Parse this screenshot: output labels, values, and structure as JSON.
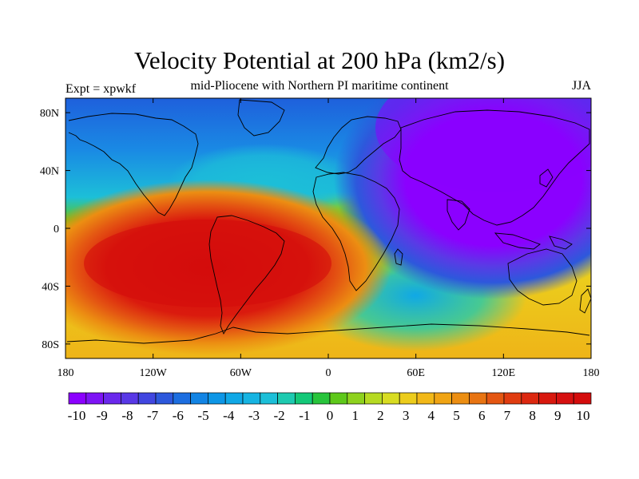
{
  "title": "Velocity Potential at 200 hPa (km2/s)",
  "left_label": "Expt = xpwkf",
  "center_label": "mid-Pliocene with Northern PI maritime continent",
  "right_label": "JJA",
  "x_ticks": [
    "180",
    "120W",
    "60W",
    "0",
    "60E",
    "120E",
    "180"
  ],
  "y_ticks": [
    "80N",
    "40N",
    "0",
    "40S",
    "80S"
  ],
  "colorbar": {
    "labels": [
      "-10",
      "-9",
      "-8",
      "-7",
      "-6",
      "-5",
      "-4",
      "-3",
      "-2",
      "-1",
      "0",
      "1",
      "2",
      "3",
      "4",
      "5",
      "6",
      "7",
      "8",
      "9",
      "10"
    ],
    "colors": [
      "#8b00ff",
      "#7d14f5",
      "#6a28ec",
      "#5838e6",
      "#4146e0",
      "#2d58dc",
      "#1c6ee0",
      "#1284e4",
      "#0d96e6",
      "#10a8e6",
      "#16b4e2",
      "#1cbfd8",
      "#1ecab0",
      "#14c878",
      "#28c43c",
      "#5ec81a",
      "#8ed21e",
      "#b6da22",
      "#d8dc22",
      "#eccc1c",
      "#f2b818",
      "#f0a414",
      "#ec8e12",
      "#e87412",
      "#e45612",
      "#e03c10",
      "#dc2810",
      "#d8180e",
      "#d61010",
      "#d40c0c"
    ]
  },
  "map_data": {
    "projection": "cylindrical-equidistant",
    "lon_range": [
      -180,
      180
    ],
    "lat_range": [
      -90,
      90
    ],
    "variable": "velocity potential",
    "level": "200 hPa",
    "units": "km2/s",
    "season": "JJA",
    "contour_levels": [
      -10,
      -9,
      -8,
      -7,
      -6,
      -5,
      -4,
      -3,
      -2,
      -1,
      0,
      1,
      2,
      3,
      4,
      5,
      6,
      7,
      8,
      9,
      10
    ],
    "extrema": [
      {
        "label": "minimum",
        "lon": 115,
        "lat": 30,
        "value": -10
      },
      {
        "label": "maximum",
        "lon": -100,
        "lat": -25,
        "value": 10
      }
    ]
  }
}
